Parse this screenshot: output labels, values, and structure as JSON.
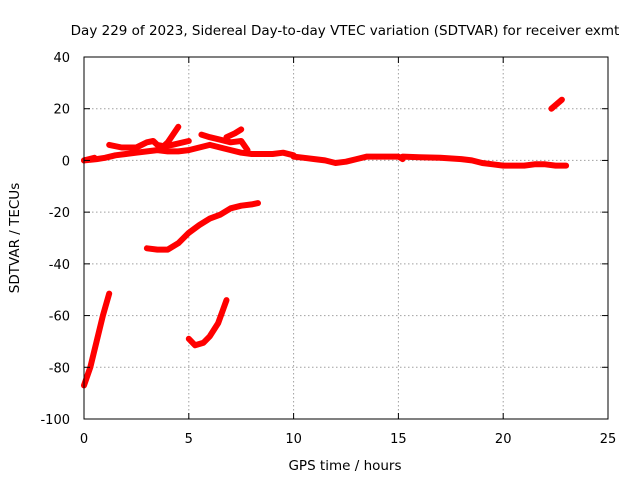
{
  "chart_data": {
    "type": "line",
    "title": "Day 229 of 2023, Sidereal Day-to-day VTEC variation (SDTVAR) for receiver exmt",
    "xlabel": "GPS time / hours",
    "ylabel": "SDTVAR / TECUs",
    "xlim": [
      0,
      25
    ],
    "ylim": [
      -100,
      40
    ],
    "xticks": [
      0,
      5,
      10,
      15,
      20,
      25
    ],
    "yticks": [
      -100,
      -80,
      -60,
      -40,
      -20,
      0,
      20,
      40
    ],
    "grid": true,
    "series_color": "#ff0000",
    "series": [
      {
        "name": "main-band-early",
        "values": [
          [
            0,
            0
          ],
          [
            0.6,
            0.5
          ],
          [
            1,
            1
          ],
          [
            1.5,
            2
          ],
          [
            2,
            2.5
          ],
          [
            2.5,
            3
          ],
          [
            3,
            3.5
          ],
          [
            3.5,
            4
          ],
          [
            4,
            3.5
          ],
          [
            4.5,
            3.5
          ],
          [
            5,
            4
          ],
          [
            5.5,
            5
          ],
          [
            6,
            6
          ],
          [
            6.5,
            5
          ],
          [
            7,
            4
          ],
          [
            7.5,
            3
          ],
          [
            8,
            2.5
          ],
          [
            8.5,
            2.5
          ],
          [
            9,
            2.5
          ],
          [
            9.5,
            3
          ],
          [
            10,
            2
          ]
        ]
      },
      {
        "name": "main-band-mid",
        "values": [
          [
            10,
            1.5
          ],
          [
            10.5,
            1
          ],
          [
            11,
            0.5
          ],
          [
            11.5,
            0
          ],
          [
            12,
            -1
          ],
          [
            12.5,
            -0.5
          ],
          [
            13,
            0.5
          ],
          [
            13.5,
            1.5
          ],
          [
            14,
            1.5
          ],
          [
            14.5,
            1.5
          ],
          [
            15,
            1.5
          ],
          [
            15.2,
            0.5
          ]
        ]
      },
      {
        "name": "main-band-late",
        "values": [
          [
            15.2,
            1.5
          ],
          [
            16,
            1.2
          ],
          [
            17,
            1
          ],
          [
            18,
            0.5
          ],
          [
            18.5,
            0
          ],
          [
            19,
            -1
          ],
          [
            19.5,
            -1.5
          ],
          [
            20,
            -2
          ],
          [
            20.5,
            -2
          ],
          [
            21,
            -2
          ],
          [
            21.5,
            -1.5
          ],
          [
            22,
            -1.5
          ],
          [
            22.5,
            -2
          ],
          [
            23,
            -2
          ]
        ]
      },
      {
        "name": "upper-band-1",
        "values": [
          [
            1.2,
            6
          ],
          [
            1.8,
            5
          ],
          [
            2.5,
            5
          ],
          [
            3,
            7
          ],
          [
            3.3,
            7.5
          ],
          [
            3.5,
            6
          ],
          [
            3.8,
            5.5
          ],
          [
            4.2,
            6
          ],
          [
            5,
            7.5
          ]
        ]
      },
      {
        "name": "spike-1",
        "values": [
          [
            3.6,
            4
          ],
          [
            4,
            7
          ],
          [
            4.5,
            13
          ]
        ]
      },
      {
        "name": "upper-band-2",
        "values": [
          [
            5.6,
            10
          ],
          [
            6,
            9
          ],
          [
            6.5,
            8
          ],
          [
            7,
            7
          ],
          [
            7.5,
            7.5
          ],
          [
            7.8,
            4
          ]
        ]
      },
      {
        "name": "spike-2",
        "values": [
          [
            6.8,
            9
          ],
          [
            7.2,
            10.5
          ],
          [
            7.5,
            12
          ]
        ]
      },
      {
        "name": "early-late-segment",
        "values": [
          [
            0,
            0
          ],
          [
            0.5,
            1
          ]
        ]
      },
      {
        "name": "end-segment",
        "values": [
          [
            22.3,
            20
          ],
          [
            22.8,
            23.5
          ]
        ]
      },
      {
        "name": "segment-mid-rise",
        "values": [
          [
            3,
            -34
          ],
          [
            3.5,
            -34.5
          ],
          [
            4,
            -34.5
          ],
          [
            4.5,
            -32
          ],
          [
            5,
            -28
          ],
          [
            5.5,
            -25
          ],
          [
            6,
            -22.5
          ],
          [
            6.5,
            -21
          ],
          [
            7,
            -18.5
          ],
          [
            7.5,
            -17.5
          ],
          [
            8,
            -17
          ],
          [
            8.3,
            -16.5
          ]
        ]
      },
      {
        "name": "segment-steep-early",
        "values": [
          [
            0,
            -87
          ],
          [
            0.3,
            -80
          ],
          [
            0.6,
            -70
          ],
          [
            0.9,
            -60
          ],
          [
            1.2,
            -51.5
          ]
        ]
      },
      {
        "name": "segment-hook",
        "values": [
          [
            5,
            -69
          ],
          [
            5.3,
            -71.5
          ],
          [
            5.7,
            -70.5
          ],
          [
            6,
            -68
          ],
          [
            6.4,
            -63
          ],
          [
            6.8,
            -54
          ]
        ]
      }
    ]
  }
}
